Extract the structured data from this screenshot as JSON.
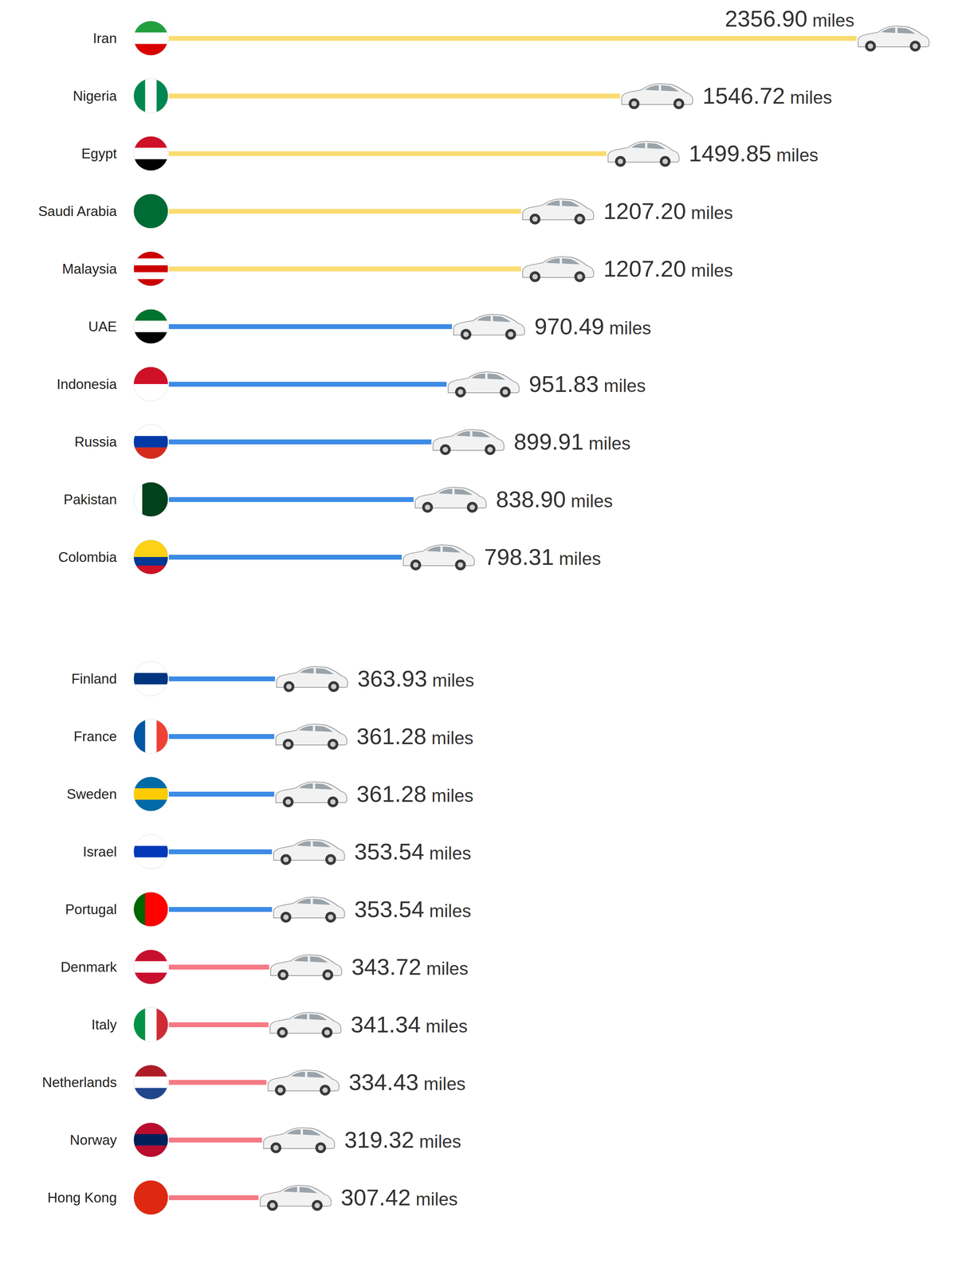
{
  "chart_data": [
    {
      "type": "bar",
      "orientation": "horizontal",
      "data_labels": true,
      "tick_labels": "y",
      "grid": false,
      "categories": [
        "Iran",
        "Nigeria",
        "Egypt",
        "Saudi Arabia",
        "Malaysia",
        "UAE",
        "Indonesia",
        "Russia",
        "Pakistan",
        "Colombia"
      ],
      "values": [
        2356.9,
        1546.72,
        1499.85,
        1207.2,
        1207.2,
        970.49,
        951.83,
        899.91,
        838.9,
        798.31
      ],
      "value_labels": [
        "2356.90 miles",
        "1546.72 miles",
        "1499.85 miles",
        "1207.20 miles",
        "1207.20 miles",
        "970.49 miles",
        "951.83 miles",
        "899.91 miles",
        "838.90 miles",
        "798.31 miles"
      ],
      "colors": [
        "#f9dc72",
        "#f9dc72",
        "#f9dc72",
        "#f9dc72",
        "#f9dc72",
        "#3d8be6",
        "#3d8be6",
        "#3d8be6",
        "#3d8be6",
        "#3d8be6"
      ]
    },
    {
      "type": "bar",
      "orientation": "horizontal",
      "data_labels": true,
      "tick_labels": "y",
      "grid": false,
      "categories": [
        "Finland",
        "France",
        "Sweden",
        "Israel",
        "Portugal",
        "Denmark",
        "Italy",
        "Netherlands",
        "Norway",
        "Hong Kong"
      ],
      "values": [
        363.93,
        361.28,
        361.28,
        353.54,
        353.54,
        343.72,
        341.34,
        334.43,
        319.32,
        307.42
      ],
      "value_labels": [
        "363.93 miles",
        "361.28 miles",
        "361.28 miles",
        "353.54 miles",
        "353.54 miles",
        "343.72 miles",
        "341.34 miles",
        "334.43 miles",
        "319.32 miles",
        "307.42 miles"
      ],
      "colors": [
        "#3d8be6",
        "#3d8be6",
        "#3d8be6",
        "#3d8be6",
        "#3d8be6",
        "#f57a85",
        "#f57a85",
        "#f57a85",
        "#f57a85",
        "#f57a85"
      ]
    }
  ]
}
